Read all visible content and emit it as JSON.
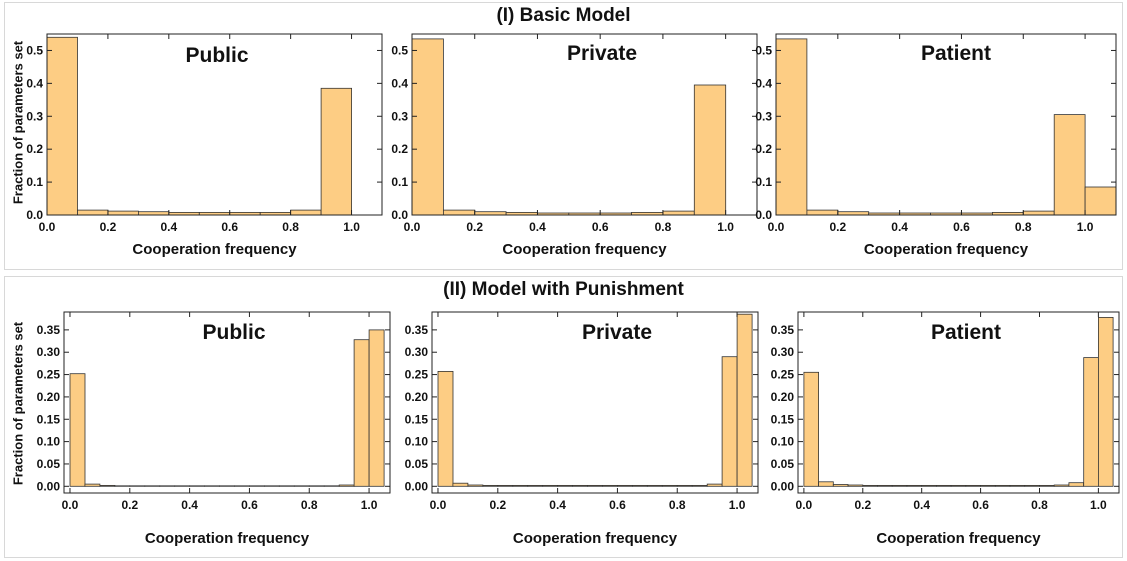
{
  "rows": [
    {
      "title": "(I) Basic Model",
      "ylabel": "Fraction of parameters set",
      "charts": [
        {
          "type": "bar",
          "title": "Public",
          "xlabel": "Cooperation frequency",
          "xlim": [
            0,
            1.1
          ],
          "ylim": [
            0,
            0.55
          ],
          "xticks": [
            0.0,
            0.2,
            0.4,
            0.6,
            0.8,
            1.0
          ],
          "yticks": [
            0.0,
            0.1,
            0.2,
            0.3,
            0.4,
            0.5
          ],
          "bin_width": 0.1,
          "bins_start": [
            0,
            0.1,
            0.2,
            0.3,
            0.4,
            0.5,
            0.6,
            0.7,
            0.8,
            0.9
          ],
          "values": [
            0.54,
            0.015,
            0.012,
            0.01,
            0.008,
            0.008,
            0.008,
            0.008,
            0.015,
            0.385
          ]
        },
        {
          "type": "bar",
          "title": "Private",
          "xlabel": "Cooperation frequency",
          "xlim": [
            0,
            1.1
          ],
          "ylim": [
            0,
            0.55
          ],
          "xticks": [
            0.0,
            0.2,
            0.4,
            0.6,
            0.8,
            1.0
          ],
          "yticks": [
            0.0,
            0.1,
            0.2,
            0.3,
            0.4,
            0.5
          ],
          "bin_width": 0.1,
          "bins_start": [
            0,
            0.1,
            0.2,
            0.3,
            0.4,
            0.5,
            0.6,
            0.7,
            0.8,
            0.9
          ],
          "values": [
            0.535,
            0.015,
            0.01,
            0.008,
            0.006,
            0.006,
            0.006,
            0.008,
            0.012,
            0.395
          ]
        },
        {
          "type": "bar",
          "title": "Patient",
          "xlabel": "Cooperation frequency",
          "xlim": [
            0,
            1.1
          ],
          "ylim": [
            0,
            0.55
          ],
          "xticks": [
            0.0,
            0.2,
            0.4,
            0.6,
            0.8,
            1.0
          ],
          "yticks": [
            0.0,
            0.1,
            0.2,
            0.3,
            0.4,
            0.5
          ],
          "bin_width": 0.1,
          "bins_start": [
            0,
            0.1,
            0.2,
            0.3,
            0.4,
            0.5,
            0.6,
            0.7,
            0.8,
            0.9,
            1.0
          ],
          "values": [
            0.535,
            0.015,
            0.01,
            0.006,
            0.006,
            0.006,
            0.006,
            0.008,
            0.012,
            0.305,
            0.085
          ]
        }
      ]
    },
    {
      "title": "(II) Model with Punishment",
      "ylabel": "Fraction of parameters set",
      "charts": [
        {
          "type": "bar",
          "title": "Public",
          "xlabel": "Cooperation frequency",
          "xlim": [
            -0.02,
            1.07
          ],
          "ylim": [
            -0.015,
            0.39
          ],
          "xticks": [
            0.0,
            0.2,
            0.4,
            0.6,
            0.8,
            1.0
          ],
          "yticks": [
            0.0,
            0.05,
            0.1,
            0.15,
            0.2,
            0.25,
            0.3,
            0.35
          ],
          "ytick_labels": [
            "0.00",
            "0.05",
            "0.10",
            "0.15",
            "0.20",
            "0.25",
            "0.30",
            "0.35"
          ],
          "bin_width": 0.05,
          "bins_start": [
            0,
            0.05,
            0.1,
            0.15,
            0.2,
            0.25,
            0.3,
            0.35,
            0.4,
            0.45,
            0.5,
            0.55,
            0.6,
            0.65,
            0.7,
            0.75,
            0.8,
            0.85,
            0.9,
            0.95,
            1.0
          ],
          "values": [
            0.252,
            0.005,
            0.002,
            0.001,
            0.001,
            0.001,
            0.001,
            0.001,
            0.001,
            0.001,
            0.001,
            0.001,
            0.001,
            0.001,
            0.001,
            0.001,
            0.001,
            0.001,
            0.003,
            0.328,
            0.35
          ]
        },
        {
          "type": "bar",
          "title": "Private",
          "xlabel": "Cooperation frequency",
          "xlim": [
            -0.02,
            1.07
          ],
          "ylim": [
            -0.015,
            0.39
          ],
          "xticks": [
            0.0,
            0.2,
            0.4,
            0.6,
            0.8,
            1.0
          ],
          "yticks": [
            0.0,
            0.05,
            0.1,
            0.15,
            0.2,
            0.25,
            0.3,
            0.35
          ],
          "ytick_labels": [
            "0.00",
            "0.05",
            "0.10",
            "0.15",
            "0.20",
            "0.25",
            "0.30",
            "0.35"
          ],
          "bin_width": 0.05,
          "bins_start": [
            0,
            0.05,
            0.1,
            0.15,
            0.2,
            0.25,
            0.3,
            0.35,
            0.4,
            0.45,
            0.5,
            0.55,
            0.6,
            0.65,
            0.7,
            0.75,
            0.8,
            0.85,
            0.9,
            0.95,
            1.0
          ],
          "values": [
            0.257,
            0.007,
            0.003,
            0.002,
            0.002,
            0.002,
            0.002,
            0.002,
            0.002,
            0.002,
            0.002,
            0.002,
            0.002,
            0.002,
            0.002,
            0.002,
            0.002,
            0.002,
            0.005,
            0.29,
            0.385
          ]
        },
        {
          "type": "bar",
          "title": "Patient",
          "xlabel": "Cooperation frequency",
          "xlim": [
            -0.02,
            1.07
          ],
          "ylim": [
            -0.015,
            0.39
          ],
          "xticks": [
            0.0,
            0.2,
            0.4,
            0.6,
            0.8,
            1.0
          ],
          "yticks": [
            0.0,
            0.05,
            0.1,
            0.15,
            0.2,
            0.25,
            0.3,
            0.35
          ],
          "ytick_labels": [
            "0.00",
            "0.05",
            "0.10",
            "0.15",
            "0.20",
            "0.25",
            "0.30",
            "0.35"
          ],
          "bin_width": 0.05,
          "bins_start": [
            0,
            0.05,
            0.1,
            0.15,
            0.2,
            0.25,
            0.3,
            0.35,
            0.4,
            0.45,
            0.5,
            0.55,
            0.6,
            0.65,
            0.7,
            0.75,
            0.8,
            0.85,
            0.9,
            0.95,
            1.0
          ],
          "values": [
            0.255,
            0.01,
            0.004,
            0.003,
            0.002,
            0.002,
            0.002,
            0.002,
            0.002,
            0.002,
            0.002,
            0.002,
            0.002,
            0.002,
            0.002,
            0.002,
            0.002,
            0.003,
            0.008,
            0.288,
            0.378
          ]
        }
      ]
    }
  ],
  "colors": {
    "bar_fill": "#fdcd84",
    "bar_stroke": "#333333",
    "axis": "#222222"
  }
}
